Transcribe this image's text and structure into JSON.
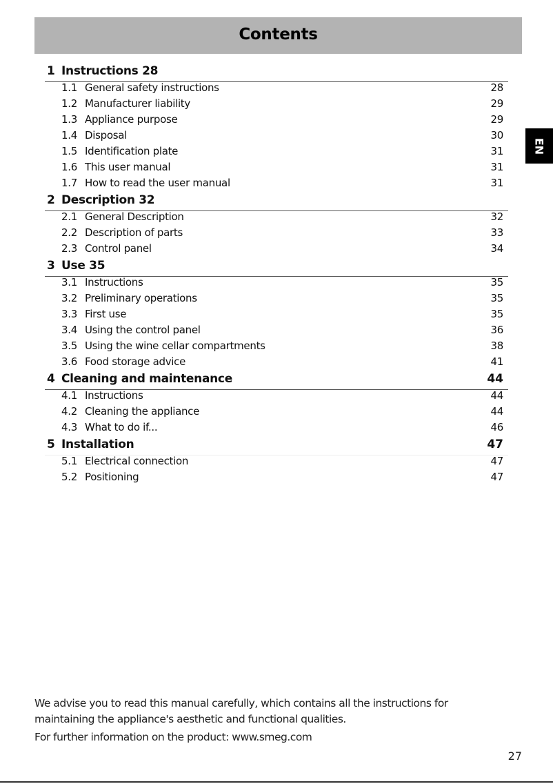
{
  "header": {
    "title": "Contents"
  },
  "lang_tab": {
    "label": "EN"
  },
  "sections": [
    {
      "num": "1",
      "title": "Instructions 28",
      "page": "",
      "items": [
        {
          "num": "1.1",
          "title": "General safety instructions",
          "page": "28"
        },
        {
          "num": "1.2",
          "title": "Manufacturer liability",
          "page": "29"
        },
        {
          "num": "1.3",
          "title": "Appliance purpose",
          "page": "29"
        },
        {
          "num": "1.4",
          "title": "Disposal",
          "page": "30"
        },
        {
          "num": "1.5",
          "title": "Identification plate",
          "page": "31"
        },
        {
          "num": "1.6",
          "title": "This user manual",
          "page": "31"
        },
        {
          "num": "1.7",
          "title": "How to read the user manual",
          "page": "31"
        }
      ]
    },
    {
      "num": "2",
      "title": "Description 32",
      "page": "",
      "items": [
        {
          "num": "2.1",
          "title": "General Description",
          "page": "32"
        },
        {
          "num": "2.2",
          "title": "Description of parts",
          "page": "33"
        },
        {
          "num": "2.3",
          "title": "Control panel",
          "page": "34"
        }
      ]
    },
    {
      "num": "3",
      "title": "Use 35",
      "page": "",
      "items": [
        {
          "num": "3.1",
          "title": "Instructions",
          "page": "35"
        },
        {
          "num": "3.2",
          "title": "Preliminary operations",
          "page": "35"
        },
        {
          "num": "3.3",
          "title": "First use",
          "page": "35"
        },
        {
          "num": "3.4",
          "title": "Using the control panel",
          "page": "36"
        },
        {
          "num": "3.5",
          "title": "Using the wine cellar compartments",
          "page": "38"
        },
        {
          "num": "3.6",
          "title": "Food storage advice",
          "page": "41"
        }
      ]
    },
    {
      "num": "4",
      "title": "Cleaning and maintenance",
      "page": "44",
      "items": [
        {
          "num": "4.1",
          "title": "Instructions",
          "page": "44"
        },
        {
          "num": "4.2",
          "title": "Cleaning the appliance",
          "page": "44"
        },
        {
          "num": "4.3",
          "title": "What to do if...",
          "page": "46"
        }
      ]
    },
    {
      "num": "5",
      "title": "Installation",
      "page": "47",
      "items": [
        {
          "num": "5.1",
          "title": "Electrical connection",
          "page": "47"
        },
        {
          "num": "5.2",
          "title": "Positioning",
          "page": "47"
        }
      ]
    }
  ],
  "footer": {
    "advice_line1": "We advise you to read this manual carefully, which contains all the instructions for",
    "advice_line2": "maintaining the appliance's aesthetic and functional qualities.",
    "info": "For further information on the product: www.smeg.com"
  },
  "page_number": "27"
}
